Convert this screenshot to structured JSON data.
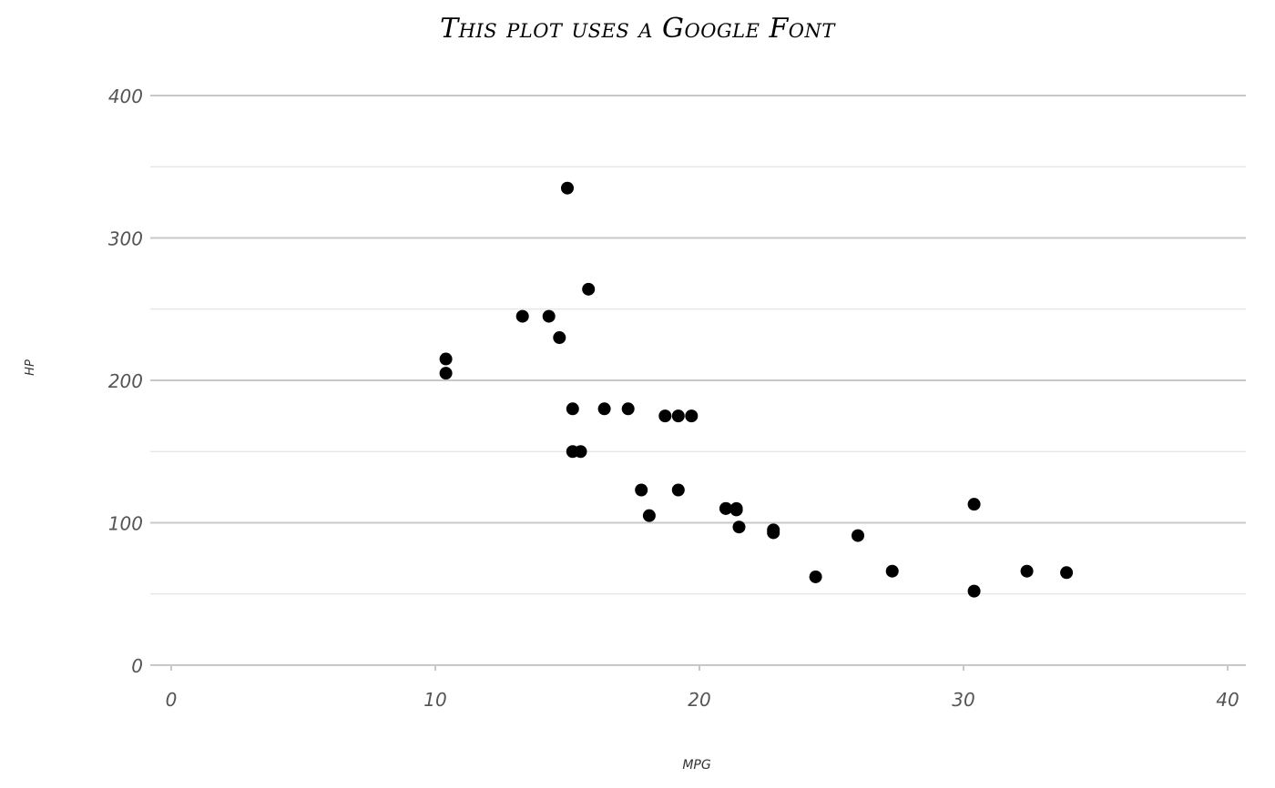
{
  "chart_data": {
    "type": "scatter",
    "title": "This plot uses a Google Font",
    "xlabel": "mpg",
    "ylabel": "hp",
    "xlim": [
      0,
      40
    ],
    "ylim": [
      0,
      400
    ],
    "x_ticks": [
      0,
      10,
      20,
      30,
      40
    ],
    "y_ticks": [
      0,
      100,
      200,
      300,
      400
    ],
    "y_minor_gridlines": [
      50,
      150,
      250,
      350
    ],
    "grid": "horizontal",
    "legend": "none",
    "point_color": "#000000",
    "gridline_color": "#c8c8c8",
    "points": [
      {
        "x": 21.0,
        "y": 110
      },
      {
        "x": 21.0,
        "y": 110
      },
      {
        "x": 22.8,
        "y": 93
      },
      {
        "x": 21.4,
        "y": 110
      },
      {
        "x": 18.7,
        "y": 175
      },
      {
        "x": 18.1,
        "y": 105
      },
      {
        "x": 14.3,
        "y": 245
      },
      {
        "x": 24.4,
        "y": 62
      },
      {
        "x": 22.8,
        "y": 95
      },
      {
        "x": 19.2,
        "y": 123
      },
      {
        "x": 17.8,
        "y": 123
      },
      {
        "x": 16.4,
        "y": 180
      },
      {
        "x": 17.3,
        "y": 180
      },
      {
        "x": 15.2,
        "y": 180
      },
      {
        "x": 10.4,
        "y": 205
      },
      {
        "x": 10.4,
        "y": 215
      },
      {
        "x": 14.7,
        "y": 230
      },
      {
        "x": 32.4,
        "y": 66
      },
      {
        "x": 30.4,
        "y": 52
      },
      {
        "x": 33.9,
        "y": 65
      },
      {
        "x": 21.5,
        "y": 97
      },
      {
        "x": 15.5,
        "y": 150
      },
      {
        "x": 15.2,
        "y": 150
      },
      {
        "x": 13.3,
        "y": 245
      },
      {
        "x": 19.2,
        "y": 175
      },
      {
        "x": 27.3,
        "y": 66
      },
      {
        "x": 26.0,
        "y": 91
      },
      {
        "x": 30.4,
        "y": 113
      },
      {
        "x": 15.8,
        "y": 264
      },
      {
        "x": 19.7,
        "y": 175
      },
      {
        "x": 15.0,
        "y": 335
      },
      {
        "x": 21.4,
        "y": 109
      }
    ]
  }
}
